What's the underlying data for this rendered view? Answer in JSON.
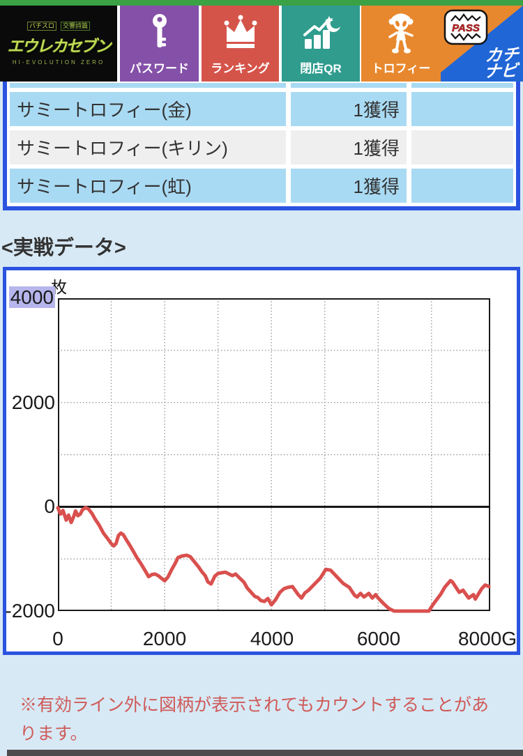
{
  "nav": {
    "logo": {
      "small_left": "パチスロ",
      "small_right": "交響詩篇",
      "title": "エウレカセブン",
      "subtitle": "HI-EVOLUTION ZERO"
    },
    "items": [
      {
        "label": "パスワード",
        "icon": "key-icon",
        "color": "#8450a8"
      },
      {
        "label": "ランキング",
        "icon": "crown-icon",
        "color": "#d5544a"
      },
      {
        "label": "閉店QR",
        "icon": "chart-moon-icon",
        "color": "#2f9c8e"
      },
      {
        "label": "トロフィー",
        "icon": "mascot-icon",
        "color": "#e8882e"
      }
    ],
    "pass_label": "PASS",
    "kachinavi": {
      "line1": "カチ",
      "line2": "ナビ",
      "color": "#2166d6"
    }
  },
  "trophy_table": {
    "rows": [
      {
        "label": "サミートロフィー(金)",
        "count": "1獲得"
      },
      {
        "label": "サミートロフィー(キリン)",
        "count": "1獲得"
      },
      {
        "label": "サミートロフィー(虹)",
        "count": "1獲得"
      }
    ]
  },
  "section_title": "<実戦データ>",
  "chart": {
    "unit": "枚",
    "y_labels": [
      "4000",
      "2000",
      "0",
      "-2000"
    ],
    "x_labels": [
      "0",
      "2000",
      "4000",
      "6000",
      "8000G"
    ]
  },
  "chart_data": {
    "type": "line",
    "title": "実戦データ",
    "ylabel": "枚",
    "xlabel": "G",
    "xlim": [
      0,
      8100
    ],
    "ylim": [
      -2000,
      4000
    ],
    "y_ticks": [
      4000,
      2000,
      0,
      -2000
    ],
    "x_ticks": [
      0,
      2000,
      4000,
      6000,
      8000
    ],
    "x_gridlines": [
      1000,
      2000,
      3000,
      4000,
      5000,
      6000,
      7000
    ],
    "y_gridlines": [
      3000,
      2000,
      1000,
      -1000
    ],
    "grid_style": "dotted",
    "line_color": "#d9504e",
    "zero_line": true,
    "points": [
      [
        0,
        -20
      ],
      [
        50,
        -140
      ],
      [
        95,
        -70
      ],
      [
        155,
        -255
      ],
      [
        200,
        -160
      ],
      [
        250,
        -300
      ],
      [
        295,
        -190
      ],
      [
        330,
        -80
      ],
      [
        375,
        -170
      ],
      [
        420,
        -140
      ],
      [
        460,
        -60
      ],
      [
        520,
        -15
      ],
      [
        575,
        -45
      ],
      [
        640,
        -130
      ],
      [
        700,
        -240
      ],
      [
        770,
        -345
      ],
      [
        850,
        -500
      ],
      [
        935,
        -615
      ],
      [
        1000,
        -705
      ],
      [
        1045,
        -750
      ],
      [
        1090,
        -705
      ],
      [
        1135,
        -550
      ],
      [
        1180,
        -505
      ],
      [
        1225,
        -535
      ],
      [
        1290,
        -645
      ],
      [
        1355,
        -750
      ],
      [
        1420,
        -865
      ],
      [
        1490,
        -990
      ],
      [
        1550,
        -1080
      ],
      [
        1615,
        -1190
      ],
      [
        1700,
        -1340
      ],
      [
        1760,
        -1300
      ],
      [
        1820,
        -1290
      ],
      [
        1880,
        -1320
      ],
      [
        1940,
        -1370
      ],
      [
        2000,
        -1420
      ],
      [
        2060,
        -1350
      ],
      [
        2130,
        -1210
      ],
      [
        2200,
        -1080
      ],
      [
        2250,
        -975
      ],
      [
        2320,
        -945
      ],
      [
        2410,
        -930
      ],
      [
        2480,
        -955
      ],
      [
        2570,
        -1070
      ],
      [
        2640,
        -1160
      ],
      [
        2700,
        -1250
      ],
      [
        2760,
        -1320
      ],
      [
        2810,
        -1440
      ],
      [
        2870,
        -1480
      ],
      [
        2940,
        -1330
      ],
      [
        3000,
        -1280
      ],
      [
        3070,
        -1265
      ],
      [
        3140,
        -1255
      ],
      [
        3210,
        -1290
      ],
      [
        3270,
        -1320
      ],
      [
        3330,
        -1290
      ],
      [
        3400,
        -1360
      ],
      [
        3485,
        -1445
      ],
      [
        3550,
        -1560
      ],
      [
        3620,
        -1640
      ],
      [
        3690,
        -1720
      ],
      [
        3745,
        -1740
      ],
      [
        3805,
        -1800
      ],
      [
        3870,
        -1815
      ],
      [
        3935,
        -1760
      ],
      [
        4000,
        -1880
      ],
      [
        4080,
        -1780
      ],
      [
        4160,
        -1640
      ],
      [
        4240,
        -1570
      ],
      [
        4310,
        -1545
      ],
      [
        4395,
        -1530
      ],
      [
        4500,
        -1680
      ],
      [
        4565,
        -1750
      ],
      [
        4630,
        -1650
      ],
      [
        4695,
        -1600
      ],
      [
        4785,
        -1505
      ],
      [
        4915,
        -1370
      ],
      [
        5020,
        -1200
      ],
      [
        5110,
        -1215
      ],
      [
        5215,
        -1330
      ],
      [
        5345,
        -1470
      ],
      [
        5460,
        -1545
      ],
      [
        5560,
        -1700
      ],
      [
        5605,
        -1730
      ],
      [
        5670,
        -1660
      ],
      [
        5735,
        -1730
      ],
      [
        5825,
        -1660
      ],
      [
        5890,
        -1750
      ],
      [
        5955,
        -1685
      ],
      [
        6000,
        -1750
      ],
      [
        6100,
        -1855
      ],
      [
        6200,
        -1950
      ],
      [
        6300,
        -2000
      ],
      [
        6500,
        -2000
      ],
      [
        6700,
        -2000
      ],
      [
        6950,
        -2000
      ],
      [
        7025,
        -1880
      ],
      [
        7105,
        -1770
      ],
      [
        7170,
        -1680
      ],
      [
        7250,
        -1540
      ],
      [
        7355,
        -1415
      ],
      [
        7395,
        -1445
      ],
      [
        7520,
        -1640
      ],
      [
        7590,
        -1600
      ],
      [
        7695,
        -1750
      ],
      [
        7785,
        -1685
      ],
      [
        7820,
        -1770
      ],
      [
        7940,
        -1570
      ],
      [
        8005,
        -1500
      ],
      [
        8075,
        -1530
      ]
    ]
  },
  "note": "※有効ライン外に図柄が表示されてもカウントすることがあります。",
  "colors": {
    "page_bg": "#d7e9f5",
    "panel_border_blue": "#2b53e0",
    "row_blue": "#a9daf3",
    "row_gray": "#efefef",
    "note_red": "#cf5a58",
    "line_red": "#d9504e",
    "top_strip_green": "#3ba145"
  }
}
